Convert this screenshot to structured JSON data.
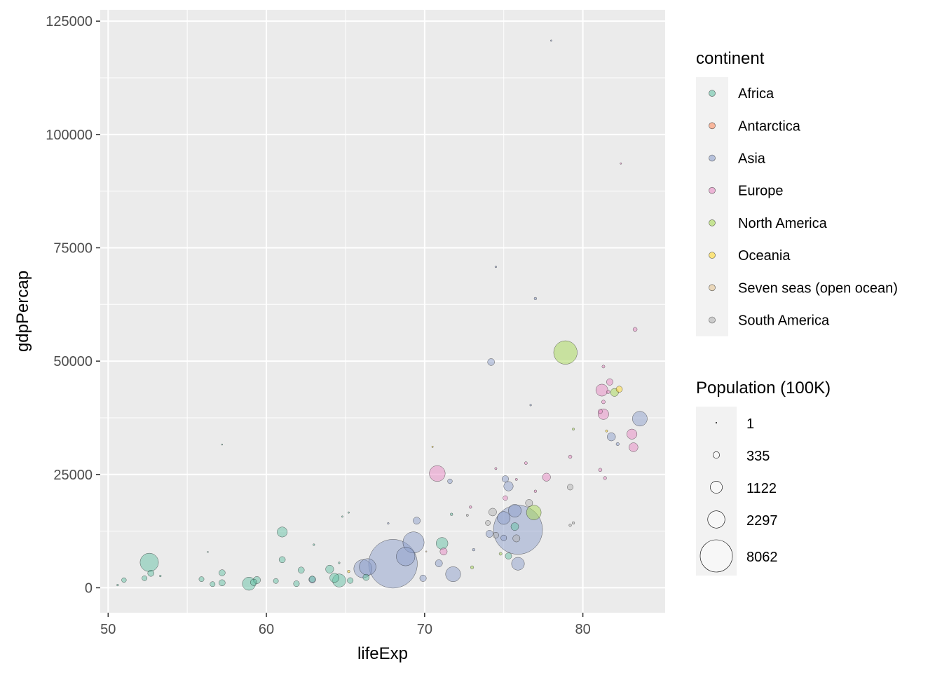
{
  "colors": {
    "panel_bg": "#EBEBEB",
    "grid": "#FFFFFF",
    "legend_key_bg": "#F2F2F2",
    "point_stroke": "#000000"
  },
  "chart_data": {
    "type": "scatter",
    "title": "",
    "xlabel": "lifeExp",
    "ylabel": "gdpPercap",
    "xlim": [
      49.5,
      85.2
    ],
    "ylim": [
      -5500,
      127500
    ],
    "x_ticks": [
      50,
      60,
      70,
      80
    ],
    "y_ticks": [
      0,
      25000,
      50000,
      75000,
      100000,
      125000
    ],
    "x_tick_labels": [
      "50",
      "60",
      "70",
      "80"
    ],
    "y_tick_labels": [
      "0",
      "25000",
      "50000",
      "75000",
      "100000",
      "125000"
    ],
    "grid": true,
    "legend_placement": "right",
    "point_opacity": 0.5,
    "color_legend": {
      "title": "continent",
      "items": [
        {
          "label": "Africa",
          "color": "#66C2A5"
        },
        {
          "label": "Antarctica",
          "color": "#FC8D62"
        },
        {
          "label": "Asia",
          "color": "#8DA0CB"
        },
        {
          "label": "Europe",
          "color": "#E78AC3"
        },
        {
          "label": "North America",
          "color": "#A6D854"
        },
        {
          "label": "Oceania",
          "color": "#FFD92F"
        },
        {
          "label": "Seven seas (open ocean)",
          "color": "#E5C494"
        },
        {
          "label": "South America",
          "color": "#B3B3B3"
        }
      ]
    },
    "size_legend": {
      "title": "Population (100K)",
      "items": [
        {
          "label": "1",
          "value": 1
        },
        {
          "label": "335",
          "value": 335
        },
        {
          "label": "1122",
          "value": 1122
        },
        {
          "label": "2297",
          "value": 2297
        },
        {
          "label": "8062",
          "value": 8062
        }
      ]
    },
    "points": [
      {
        "continent": "Asia",
        "x": 68.0,
        "y": 5300,
        "pop": 13700
      },
      {
        "continent": "Asia",
        "x": 75.9,
        "y": 12800,
        "pop": 13900
      },
      {
        "continent": "North America",
        "x": 78.9,
        "y": 51900,
        "pop": 3200
      },
      {
        "continent": "Africa",
        "x": 52.6,
        "y": 5600,
        "pop": 1950
      },
      {
        "continent": "Asia",
        "x": 69.3,
        "y": 10000,
        "pop": 2600
      },
      {
        "continent": "Asia",
        "x": 68.8,
        "y": 6900,
        "pop": 2000
      },
      {
        "continent": "Asia",
        "x": 66.4,
        "y": 4600,
        "pop": 1600
      },
      {
        "continent": "Asia",
        "x": 66.1,
        "y": 4200,
        "pop": 1900
      },
      {
        "continent": "Asia",
        "x": 71.8,
        "y": 3000,
        "pop": 1300
      },
      {
        "continent": "Africa",
        "x": 64.6,
        "y": 1600,
        "pop": 1000
      },
      {
        "continent": "North America",
        "x": 76.9,
        "y": 16600,
        "pop": 1250
      },
      {
        "continent": "Africa",
        "x": 58.9,
        "y": 900,
        "pop": 1000
      },
      {
        "continent": "Asia",
        "x": 75.0,
        "y": 15400,
        "pop": 950
      },
      {
        "continent": "Asia",
        "x": 75.7,
        "y": 17000,
        "pop": 950
      },
      {
        "continent": "Asia",
        "x": 75.9,
        "y": 5300,
        "pop": 950
      },
      {
        "continent": "Asia",
        "x": 83.6,
        "y": 37300,
        "pop": 1270
      },
      {
        "continent": "Europe",
        "x": 70.8,
        "y": 25200,
        "pop": 1450
      },
      {
        "continent": "Europe",
        "x": 81.2,
        "y": 43600,
        "pop": 830
      },
      {
        "continent": "Europe",
        "x": 81.3,
        "y": 38300,
        "pop": 660
      },
      {
        "continent": "Europe",
        "x": 83.1,
        "y": 33900,
        "pop": 600
      },
      {
        "continent": "Europe",
        "x": 83.2,
        "y": 31000,
        "pop": 470
      },
      {
        "continent": "Europe",
        "x": 77.7,
        "y": 24400,
        "pop": 380
      },
      {
        "continent": "Africa",
        "x": 71.1,
        "y": 9800,
        "pop": 800
      },
      {
        "continent": "Africa",
        "x": 61.0,
        "y": 12300,
        "pop": 600
      },
      {
        "continent": "Africa",
        "x": 64.3,
        "y": 2200,
        "pop": 500
      },
      {
        "continent": "Africa",
        "x": 64.0,
        "y": 4100,
        "pop": 380
      },
      {
        "continent": "Africa",
        "x": 75.3,
        "y": 7000,
        "pop": 240
      },
      {
        "continent": "Africa",
        "x": 75.7,
        "y": 13500,
        "pop": 350
      },
      {
        "continent": "Asia",
        "x": 75.3,
        "y": 22400,
        "pop": 520
      },
      {
        "continent": "Asia",
        "x": 74.2,
        "y": 49800,
        "pop": 280
      },
      {
        "continent": "Asia",
        "x": 81.8,
        "y": 33300,
        "pop": 400
      },
      {
        "continent": "Asia",
        "x": 69.5,
        "y": 14800,
        "pop": 300
      },
      {
        "continent": "Asia",
        "x": 70.9,
        "y": 5400,
        "pop": 300
      },
      {
        "continent": "Asia",
        "x": 74.1,
        "y": 11900,
        "pop": 300
      },
      {
        "continent": "Asia",
        "x": 75.1,
        "y": 24000,
        "pop": 250
      },
      {
        "continent": "South America",
        "x": 74.3,
        "y": 16700,
        "pop": 350
      },
      {
        "continent": "South America",
        "x": 75.8,
        "y": 10900,
        "pop": 300
      },
      {
        "continent": "South America",
        "x": 76.6,
        "y": 18700,
        "pop": 300
      },
      {
        "continent": "South America",
        "x": 79.2,
        "y": 22200,
        "pop": 200
      },
      {
        "continent": "South America",
        "x": 74.5,
        "y": 11600,
        "pop": 200
      },
      {
        "continent": "South America",
        "x": 74.0,
        "y": 14300,
        "pop": 150
      },
      {
        "continent": "Oceania",
        "x": 82.3,
        "y": 43800,
        "pop": 230
      },
      {
        "continent": "North America",
        "x": 82.0,
        "y": 43100,
        "pop": 370
      },
      {
        "continent": "Europe",
        "x": 81.7,
        "y": 45400,
        "pop": 250
      },
      {
        "continent": "Africa",
        "x": 57.2,
        "y": 3300,
        "pop": 230
      },
      {
        "continent": "Africa",
        "x": 61.0,
        "y": 6200,
        "pop": 230
      },
      {
        "continent": "Africa",
        "x": 62.2,
        "y": 3900,
        "pop": 230
      },
      {
        "continent": "Africa",
        "x": 59.4,
        "y": 1700,
        "pop": 300
      },
      {
        "continent": "Africa",
        "x": 59.2,
        "y": 1200,
        "pop": 250
      },
      {
        "continent": "Africa",
        "x": 57.2,
        "y": 1100,
        "pop": 230
      },
      {
        "continent": "Africa",
        "x": 55.9,
        "y": 1900,
        "pop": 150
      },
      {
        "continent": "Africa",
        "x": 52.3,
        "y": 2100,
        "pop": 150
      },
      {
        "continent": "Africa",
        "x": 52.7,
        "y": 3200,
        "pop": 230
      },
      {
        "continent": "Africa",
        "x": 61.9,
        "y": 900,
        "pop": 200
      },
      {
        "continent": "Africa",
        "x": 62.9,
        "y": 1900,
        "pop": 230
      },
      {
        "continent": "Africa",
        "x": 65.3,
        "y": 1600,
        "pop": 200
      },
      {
        "continent": "Africa",
        "x": 66.3,
        "y": 2300,
        "pop": 230
      },
      {
        "continent": "Africa",
        "x": 60.6,
        "y": 1500,
        "pop": 150
      },
      {
        "continent": "Africa",
        "x": 56.6,
        "y": 800,
        "pop": 150
      },
      {
        "continent": "Africa",
        "x": 51.0,
        "y": 1700,
        "pop": 130
      },
      {
        "continent": "Asia",
        "x": 62.9,
        "y": 1800,
        "pop": 270
      },
      {
        "continent": "Asia",
        "x": 69.9,
        "y": 2100,
        "pop": 250
      },
      {
        "continent": "Asia",
        "x": 75.0,
        "y": 11000,
        "pop": 200
      },
      {
        "continent": "Asia",
        "x": 71.6,
        "y": 23500,
        "pop": 130
      },
      {
        "continent": "Europe",
        "x": 71.2,
        "y": 8000,
        "pop": 300
      },
      {
        "continent": "Europe",
        "x": 75.1,
        "y": 19800,
        "pop": 130
      },
      {
        "continent": "Europe",
        "x": 81.1,
        "y": 38900,
        "pop": 110
      },
      {
        "continent": "Europe",
        "x": 81.3,
        "y": 41000,
        "pop": 80
      },
      {
        "continent": "Europe",
        "x": 81.6,
        "y": 43200,
        "pop": 70
      },
      {
        "continent": "Europe",
        "x": 83.3,
        "y": 57000,
        "pop": 100
      },
      {
        "continent": "Europe",
        "x": 81.3,
        "y": 48800,
        "pop": 50
      },
      {
        "continent": "Europe",
        "x": 76.4,
        "y": 27500,
        "pop": 50
      },
      {
        "continent": "Europe",
        "x": 81.1,
        "y": 26000,
        "pop": 70
      },
      {
        "continent": "Europe",
        "x": 81.4,
        "y": 24200,
        "pop": 60
      },
      {
        "continent": "Europe",
        "x": 79.2,
        "y": 28900,
        "pop": 70
      },
      {
        "continent": "Europe",
        "x": 77.0,
        "y": 21300,
        "pop": 40
      },
      {
        "continent": "Europe",
        "x": 72.9,
        "y": 17800,
        "pop": 40
      },
      {
        "continent": "Europe",
        "x": 74.5,
        "y": 26300,
        "pop": 30
      },
      {
        "continent": "Europe",
        "x": 75.8,
        "y": 23900,
        "pop": 30
      },
      {
        "continent": "Asia",
        "x": 78.0,
        "y": 120700,
        "pop": 15
      },
      {
        "continent": "Asia",
        "x": 74.5,
        "y": 70800,
        "pop": 20
      },
      {
        "continent": "Asia",
        "x": 77.0,
        "y": 63800,
        "pop": 40
      },
      {
        "continent": "Asia",
        "x": 76.7,
        "y": 40300,
        "pop": 20
      },
      {
        "continent": "Asia",
        "x": 82.2,
        "y": 31700,
        "pop": 60
      },
      {
        "continent": "Asia",
        "x": 73.1,
        "y": 8400,
        "pop": 40
      },
      {
        "continent": "Asia",
        "x": 67.7,
        "y": 14200,
        "pop": 20
      },
      {
        "continent": "Europe",
        "x": 82.4,
        "y": 93600,
        "pop": 15
      },
      {
        "continent": "North America",
        "x": 79.4,
        "y": 35000,
        "pop": 30
      },
      {
        "continent": "North America",
        "x": 73.0,
        "y": 4500,
        "pop": 60
      },
      {
        "continent": "North America",
        "x": 74.8,
        "y": 7500,
        "pop": 50
      },
      {
        "continent": "Oceania",
        "x": 81.5,
        "y": 34600,
        "pop": 30
      },
      {
        "continent": "Oceania",
        "x": 65.2,
        "y": 3600,
        "pop": 40
      },
      {
        "continent": "Oceania",
        "x": 70.5,
        "y": 31100,
        "pop": 15
      },
      {
        "continent": "Seven seas (open ocean)",
        "x": 70.1,
        "y": 8000,
        "pop": 10
      },
      {
        "continent": "South America",
        "x": 79.4,
        "y": 14300,
        "pop": 40
      },
      {
        "continent": "South America",
        "x": 79.2,
        "y": 13800,
        "pop": 40
      },
      {
        "continent": "South America",
        "x": 72.7,
        "y": 16000,
        "pop": 30
      },
      {
        "continent": "Africa",
        "x": 57.2,
        "y": 31600,
        "pop": 10
      },
      {
        "continent": "Africa",
        "x": 64.8,
        "y": 15700,
        "pop": 15
      },
      {
        "continent": "Africa",
        "x": 65.2,
        "y": 16600,
        "pop": 15
      },
      {
        "continent": "Africa",
        "x": 63.0,
        "y": 9500,
        "pop": 20
      },
      {
        "continent": "Africa",
        "x": 64.6,
        "y": 5500,
        "pop": 20
      },
      {
        "continent": "Africa",
        "x": 53.3,
        "y": 2600,
        "pop": 20
      },
      {
        "continent": "Africa",
        "x": 56.3,
        "y": 7900,
        "pop": 10
      },
      {
        "continent": "Africa",
        "x": 71.7,
        "y": 16200,
        "pop": 40
      },
      {
        "continent": "Africa",
        "x": 50.6,
        "y": 600,
        "pop": 20
      }
    ]
  }
}
